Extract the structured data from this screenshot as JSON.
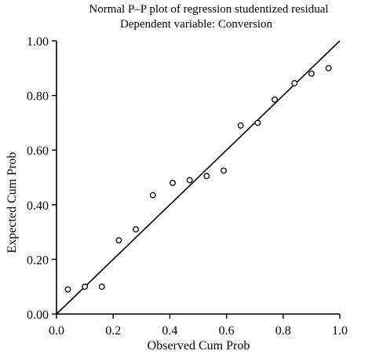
{
  "chart_data": {
    "type": "scatter",
    "title": "Normal P–P plot of regression studentized residual",
    "subtitle": "Dependent variable: Conversion",
    "xlabel": "Observed Cum Prob",
    "ylabel": "Expected Cum Prob",
    "xlim": [
      0.0,
      1.0
    ],
    "ylim": [
      0.0,
      1.0
    ],
    "xticks": [
      "0.0",
      "0.2",
      "0.4",
      "0.6",
      "0.8",
      "1.0"
    ],
    "yticks": [
      "0.00",
      "0.20",
      "0.40",
      "0.60",
      "0.80",
      "1.00"
    ],
    "reference_line": {
      "from": [
        0,
        0
      ],
      "to": [
        1,
        1
      ]
    },
    "grid": false,
    "series": [
      {
        "points": [
          [
            0.04,
            0.09
          ],
          [
            0.1,
            0.1
          ],
          [
            0.16,
            0.1
          ],
          [
            0.22,
            0.27
          ],
          [
            0.28,
            0.31
          ],
          [
            0.34,
            0.435
          ],
          [
            0.41,
            0.48
          ],
          [
            0.47,
            0.49
          ],
          [
            0.53,
            0.505
          ],
          [
            0.59,
            0.525
          ],
          [
            0.65,
            0.69
          ],
          [
            0.71,
            0.7
          ],
          [
            0.77,
            0.785
          ],
          [
            0.84,
            0.845
          ],
          [
            0.9,
            0.88
          ],
          [
            0.96,
            0.9
          ]
        ]
      }
    ]
  }
}
